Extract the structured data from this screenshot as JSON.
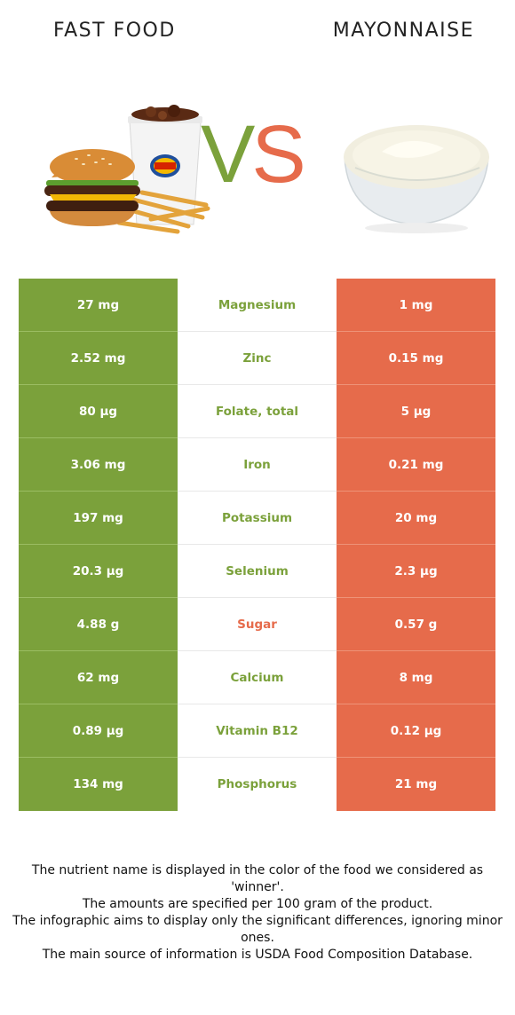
{
  "header": {
    "left_food": "FAST FOOD",
    "right_food": "MAYONNAISE",
    "vs_v": "V",
    "vs_s": "S"
  },
  "colors": {
    "winner_left": "#7ba13b",
    "winner_right": "#e66b4b"
  },
  "images": {
    "left": "fast-food-burger-fries-drink-image",
    "right": "mayonnaise-bowl-image"
  },
  "rows": [
    {
      "left": "27 mg",
      "nutrient": "Magnesium",
      "right": "1 mg",
      "winner": "left"
    },
    {
      "left": "2.52 mg",
      "nutrient": "Zinc",
      "right": "0.15 mg",
      "winner": "left"
    },
    {
      "left": "80 µg",
      "nutrient": "Folate, total",
      "right": "5 µg",
      "winner": "left"
    },
    {
      "left": "3.06 mg",
      "nutrient": "Iron",
      "right": "0.21 mg",
      "winner": "left"
    },
    {
      "left": "197 mg",
      "nutrient": "Potassium",
      "right": "20 mg",
      "winner": "left"
    },
    {
      "left": "20.3 µg",
      "nutrient": "Selenium",
      "right": "2.3 µg",
      "winner": "left"
    },
    {
      "left": "4.88 g",
      "nutrient": "Sugar",
      "right": "0.57 g",
      "winner": "right"
    },
    {
      "left": "62 mg",
      "nutrient": "Calcium",
      "right": "8 mg",
      "winner": "left"
    },
    {
      "left": "0.89 µg",
      "nutrient": "Vitamin B12",
      "right": "0.12 µg",
      "winner": "left"
    },
    {
      "left": "134 mg",
      "nutrient": "Phosphorus",
      "right": "21 mg",
      "winner": "left"
    }
  ],
  "footer": [
    "The nutrient name is displayed in the color of the food we considered as 'winner'.",
    "The amounts are specified per 100 gram of the product.",
    "The infographic aims to display only the significant differences, ignoring minor ones.",
    "The main source of information is USDA Food Composition Database."
  ]
}
